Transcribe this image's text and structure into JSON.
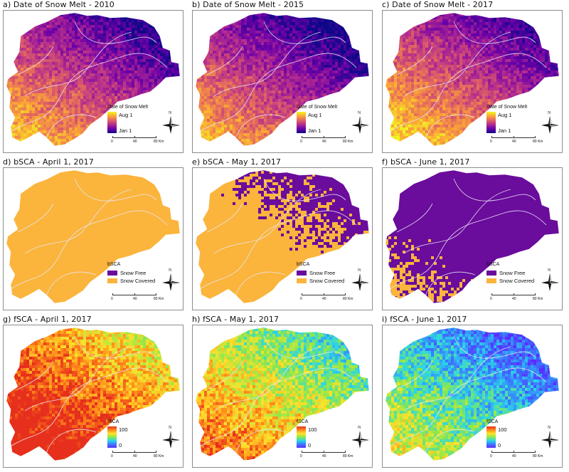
{
  "panels": [
    {
      "id": "a",
      "title": "a) Date of Snow Melt - 2010",
      "kind": "melt",
      "dark": 0.45
    },
    {
      "id": "b",
      "title": "b) Date of Snow Melt - 2015",
      "kind": "melt",
      "dark": 0.6
    },
    {
      "id": "c",
      "title": "c) Date of Snow Melt - 2017",
      "kind": "melt",
      "dark": 0.3
    },
    {
      "id": "d",
      "title": "d) bSCA - April 1, 2017",
      "kind": "bsca",
      "cover": 0.97
    },
    {
      "id": "e",
      "title": "e) bSCA - May 1, 2017",
      "kind": "bsca",
      "cover": 0.55
    },
    {
      "id": "f",
      "title": "f) bSCA - June 1, 2017",
      "kind": "bsca",
      "cover": 0.18
    },
    {
      "id": "g",
      "title": "g) fSCA - April 1, 2017",
      "kind": "fsca",
      "level": 0.75
    },
    {
      "id": "h",
      "title": "h) fSCA - May 1, 2017",
      "kind": "fsca",
      "level": 0.45
    },
    {
      "id": "i",
      "title": "i) fSCA - June 1, 2017",
      "kind": "fsca",
      "level": 0.15
    }
  ],
  "legends": {
    "melt": {
      "title": "Date of Snow Melt",
      "high": "Aug 1",
      "low": "Jan 1"
    },
    "bsca": {
      "title": "bSCA",
      "items": [
        "Snow Free",
        "Snow Covered"
      ],
      "colors": [
        "#6a0c9c",
        "#fbb43c"
      ]
    },
    "fsca": {
      "title": "fSCA",
      "high": "100",
      "low": "0"
    }
  },
  "north_label": "N",
  "scale": {
    "labels": [
      "0",
      "40",
      "80 Km"
    ]
  },
  "colors": {
    "melt_ramp": [
      "#f0f921",
      "#fca636",
      "#e16462",
      "#b12a90",
      "#6a00a8",
      "#0d0887"
    ],
    "fsca_ramp": [
      "#e62f1c",
      "#ff8c1a",
      "#ffe22b",
      "#8ee84a",
      "#2ad6e8",
      "#3a7bff",
      "#5a2bff"
    ],
    "river": "#e8e8f2"
  }
}
